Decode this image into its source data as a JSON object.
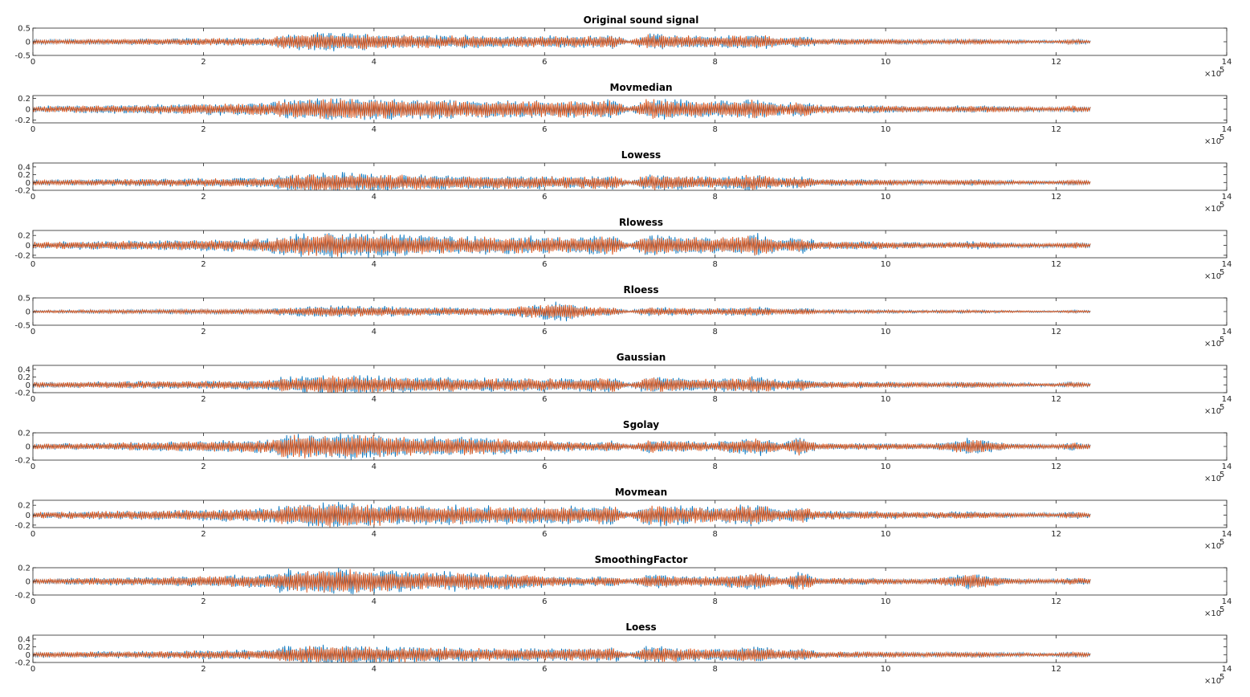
{
  "colors": {
    "original": "#0072BD",
    "smoothed": "#D95319",
    "axis": "#262626",
    "background": "#ffffff"
  },
  "chart_data": [
    {
      "type": "line",
      "title": "Original sound signal",
      "xlim": [
        0,
        1400000
      ],
      "ylim": [
        -0.5,
        0.5
      ],
      "xticks": [
        "0",
        "2",
        "4",
        "6",
        "8",
        "10",
        "12",
        "14"
      ],
      "x_exponent": "×10",
      "x_exponent_power": "5",
      "yticks": [
        {
          "value": 0.5,
          "label": "0.5"
        },
        {
          "value": 0,
          "label": "0"
        },
        {
          "value": -0.5,
          "label": "-0.5"
        }
      ],
      "signal_end_x": 1240000,
      "envelope_x": [
        0,
        150000,
        280000,
        290000,
        350000,
        400000,
        450000,
        550000,
        650000,
        680000,
        700000,
        720000,
        800000,
        850000,
        880000,
        900000,
        920000,
        1000000,
        1050000,
        1100000,
        1150000,
        1200000,
        1220000,
        1240000
      ],
      "envelope_amp": [
        0.08,
        0.12,
        0.16,
        0.26,
        0.34,
        0.3,
        0.26,
        0.22,
        0.22,
        0.26,
        0.05,
        0.3,
        0.2,
        0.3,
        0.15,
        0.22,
        0.12,
        0.1,
        0.08,
        0.1,
        0.07,
        0.05,
        0.1,
        0.06
      ],
      "series": [
        {
          "values_note_free": true,
          "color_key": "smoothed"
        }
      ]
    },
    {
      "type": "line",
      "title": "Movmedian",
      "xlim": [
        0,
        1400000
      ],
      "ylim": [
        -0.25,
        0.25
      ],
      "xticks": [
        "0",
        "2",
        "4",
        "6",
        "8",
        "10",
        "12",
        "14"
      ],
      "x_exponent": "×10",
      "x_exponent_power": "5",
      "yticks": [
        {
          "value": 0.2,
          "label": "0.2"
        },
        {
          "value": 0,
          "label": "0"
        },
        {
          "value": -0.2,
          "label": "-0.2"
        }
      ],
      "signal_end_x": 1240000,
      "envelope_x": [
        0,
        150000,
        280000,
        290000,
        350000,
        400000,
        450000,
        550000,
        650000,
        680000,
        700000,
        720000,
        800000,
        850000,
        880000,
        900000,
        920000,
        1000000,
        1050000,
        1100000,
        1150000,
        1200000,
        1220000,
        1240000
      ],
      "envelope_amp": [
        0.06,
        0.09,
        0.12,
        0.18,
        0.22,
        0.2,
        0.18,
        0.16,
        0.16,
        0.18,
        0.04,
        0.2,
        0.14,
        0.2,
        0.1,
        0.16,
        0.08,
        0.07,
        0.06,
        0.07,
        0.05,
        0.04,
        0.07,
        0.05
      ]
    },
    {
      "type": "line",
      "title": "Lowess",
      "xlim": [
        0,
        1400000
      ],
      "ylim": [
        -0.2,
        0.5
      ],
      "xticks": [
        "0",
        "2",
        "4",
        "6",
        "8",
        "10",
        "12",
        "14"
      ],
      "x_exponent": "×10",
      "x_exponent_power": "5",
      "yticks": [
        {
          "value": 0.4,
          "label": "0.4"
        },
        {
          "value": 0.2,
          "label": "0.2"
        },
        {
          "value": 0,
          "label": "0"
        },
        {
          "value": -0.2,
          "label": "-0.2"
        }
      ],
      "signal_end_x": 1240000,
      "envelope_x": [
        0,
        150000,
        280000,
        290000,
        350000,
        400000,
        450000,
        550000,
        650000,
        680000,
        700000,
        720000,
        800000,
        850000,
        880000,
        900000,
        920000,
        1000000,
        1050000,
        1100000,
        1150000,
        1200000,
        1220000,
        1240000
      ],
      "envelope_amp": [
        0.07,
        0.1,
        0.13,
        0.2,
        0.26,
        0.22,
        0.2,
        0.17,
        0.17,
        0.2,
        0.04,
        0.22,
        0.15,
        0.22,
        0.11,
        0.17,
        0.09,
        0.08,
        0.06,
        0.08,
        0.05,
        0.04,
        0.08,
        0.05
      ]
    },
    {
      "type": "line",
      "title": "Rlowess",
      "xlim": [
        0,
        1400000
      ],
      "ylim": [
        -0.25,
        0.3
      ],
      "xticks": [
        "0",
        "2",
        "4",
        "6",
        "8",
        "10",
        "12",
        "14"
      ],
      "x_exponent": "×10",
      "x_exponent_power": "5",
      "yticks": [
        {
          "value": 0.2,
          "label": "0.2"
        },
        {
          "value": 0,
          "label": "0"
        },
        {
          "value": -0.2,
          "label": "-0.2"
        }
      ],
      "signal_end_x": 1240000,
      "envelope_x": [
        0,
        150000,
        280000,
        290000,
        350000,
        400000,
        450000,
        550000,
        650000,
        680000,
        700000,
        720000,
        800000,
        850000,
        880000,
        900000,
        920000,
        1000000,
        1050000,
        1100000,
        1150000,
        1200000,
        1220000,
        1240000
      ],
      "envelope_amp": [
        0.07,
        0.1,
        0.14,
        0.2,
        0.26,
        0.23,
        0.2,
        0.18,
        0.18,
        0.2,
        0.04,
        0.23,
        0.16,
        0.23,
        0.11,
        0.18,
        0.09,
        0.08,
        0.06,
        0.08,
        0.05,
        0.04,
        0.08,
        0.05
      ]
    },
    {
      "type": "line",
      "title": "Rloess",
      "xlim": [
        0,
        1400000
      ],
      "ylim": [
        -0.5,
        0.5
      ],
      "xticks": [
        "0",
        "2",
        "4",
        "6",
        "8",
        "10",
        "12",
        "14"
      ],
      "x_exponent": "×10",
      "x_exponent_power": "5",
      "yticks": [
        {
          "value": 0.5,
          "label": "0.5"
        },
        {
          "value": 0,
          "label": "0"
        },
        {
          "value": -0.5,
          "label": "-0.5"
        }
      ],
      "signal_end_x": 1240000,
      "envelope_x": [
        0,
        150000,
        280000,
        290000,
        350000,
        400000,
        450000,
        550000,
        620000,
        650000,
        680000,
        700000,
        720000,
        800000,
        850000,
        880000,
        900000,
        920000,
        1000000,
        1050000,
        1100000,
        1150000,
        1200000,
        1220000,
        1240000
      ],
      "envelope_amp": [
        0.05,
        0.08,
        0.1,
        0.14,
        0.22,
        0.2,
        0.16,
        0.14,
        0.35,
        0.2,
        0.16,
        0.03,
        0.18,
        0.12,
        0.18,
        0.09,
        0.14,
        0.07,
        0.06,
        0.05,
        0.06,
        0.04,
        0.03,
        0.06,
        0.04
      ]
    },
    {
      "type": "line",
      "title": "Gaussian",
      "xlim": [
        0,
        1400000
      ],
      "ylim": [
        -0.2,
        0.5
      ],
      "xticks": [
        "0",
        "2",
        "4",
        "6",
        "8",
        "10",
        "12",
        "14"
      ],
      "x_exponent": "×10",
      "x_exponent_power": "5",
      "yticks": [
        {
          "value": 0.4,
          "label": "0.4"
        },
        {
          "value": 0.2,
          "label": "0.2"
        },
        {
          "value": 0,
          "label": "0"
        },
        {
          "value": -0.2,
          "label": "-0.2"
        }
      ],
      "signal_end_x": 1240000,
      "envelope_x": [
        0,
        150000,
        280000,
        290000,
        350000,
        400000,
        450000,
        550000,
        650000,
        680000,
        700000,
        720000,
        800000,
        850000,
        880000,
        900000,
        920000,
        1000000,
        1050000,
        1100000,
        1150000,
        1200000,
        1220000,
        1240000
      ],
      "envelope_amp": [
        0.07,
        0.1,
        0.13,
        0.2,
        0.26,
        0.22,
        0.2,
        0.17,
        0.17,
        0.2,
        0.04,
        0.22,
        0.15,
        0.22,
        0.11,
        0.17,
        0.09,
        0.08,
        0.06,
        0.08,
        0.05,
        0.04,
        0.08,
        0.05
      ]
    },
    {
      "type": "line",
      "title": "Sgolay",
      "xlim": [
        0,
        1400000
      ],
      "ylim": [
        -0.2,
        0.2
      ],
      "xticks": [
        "0",
        "2",
        "4",
        "6",
        "8",
        "10",
        "12",
        "14"
      ],
      "x_exponent": "×10",
      "x_exponent_power": "5",
      "yticks": [
        {
          "value": 0.2,
          "label": "0.2"
        },
        {
          "value": 0,
          "label": "0"
        },
        {
          "value": -0.2,
          "label": "-0.2"
        }
      ],
      "signal_end_x": 1240000,
      "envelope_x": [
        0,
        150000,
        280000,
        290000,
        350000,
        400000,
        450000,
        550000,
        650000,
        680000,
        700000,
        720000,
        800000,
        850000,
        880000,
        900000,
        920000,
        1000000,
        1050000,
        1100000,
        1150000,
        1200000,
        1220000,
        1240000
      ],
      "envelope_amp": [
        0.04,
        0.07,
        0.1,
        0.17,
        0.19,
        0.18,
        0.15,
        0.12,
        0.06,
        0.08,
        0.03,
        0.1,
        0.07,
        0.14,
        0.05,
        0.15,
        0.05,
        0.05,
        0.04,
        0.12,
        0.04,
        0.03,
        0.06,
        0.04
      ]
    },
    {
      "type": "line",
      "title": "Movmean",
      "xlim": [
        0,
        1400000
      ],
      "ylim": [
        -0.25,
        0.3
      ],
      "xticks": [
        "0",
        "2",
        "4",
        "6",
        "8",
        "10",
        "12",
        "14"
      ],
      "x_exponent": "×10",
      "x_exponent_power": "5",
      "yticks": [
        {
          "value": 0.2,
          "label": "0.2"
        },
        {
          "value": 0,
          "label": "0"
        },
        {
          "value": -0.2,
          "label": "-0.2"
        }
      ],
      "signal_end_x": 1240000,
      "envelope_x": [
        0,
        150000,
        280000,
        290000,
        350000,
        400000,
        450000,
        550000,
        650000,
        680000,
        700000,
        720000,
        800000,
        850000,
        880000,
        900000,
        920000,
        1000000,
        1050000,
        1100000,
        1150000,
        1200000,
        1220000,
        1240000
      ],
      "envelope_amp": [
        0.07,
        0.1,
        0.14,
        0.2,
        0.26,
        0.23,
        0.2,
        0.18,
        0.18,
        0.2,
        0.04,
        0.23,
        0.16,
        0.23,
        0.11,
        0.18,
        0.09,
        0.08,
        0.06,
        0.08,
        0.05,
        0.04,
        0.08,
        0.05
      ]
    },
    {
      "type": "line",
      "title": "SmoothingFactor",
      "xlim": [
        0,
        1400000
      ],
      "ylim": [
        -0.2,
        0.2
      ],
      "xticks": [
        "0",
        "2",
        "4",
        "6",
        "8",
        "10",
        "12",
        "14"
      ],
      "x_exponent": "×10",
      "x_exponent_power": "5",
      "yticks": [
        {
          "value": 0.2,
          "label": "0.2"
        },
        {
          "value": 0,
          "label": "0"
        },
        {
          "value": -0.2,
          "label": "-0.2"
        }
      ],
      "signal_end_x": 1240000,
      "envelope_x": [
        0,
        150000,
        280000,
        290000,
        350000,
        400000,
        450000,
        550000,
        650000,
        680000,
        700000,
        720000,
        800000,
        850000,
        880000,
        900000,
        920000,
        1000000,
        1050000,
        1100000,
        1150000,
        1200000,
        1220000,
        1240000
      ],
      "envelope_amp": [
        0.04,
        0.07,
        0.1,
        0.17,
        0.19,
        0.18,
        0.15,
        0.12,
        0.06,
        0.08,
        0.03,
        0.1,
        0.07,
        0.14,
        0.05,
        0.15,
        0.05,
        0.05,
        0.04,
        0.12,
        0.04,
        0.03,
        0.06,
        0.04
      ]
    },
    {
      "type": "line",
      "title": "Loess",
      "xlim": [
        0,
        1400000
      ],
      "ylim": [
        -0.2,
        0.5
      ],
      "xticks": [
        "0",
        "2",
        "4",
        "6",
        "8",
        "10",
        "12",
        "14"
      ],
      "x_exponent": "×10",
      "x_exponent_power": "5",
      "yticks": [
        {
          "value": 0.4,
          "label": "0.4"
        },
        {
          "value": 0.2,
          "label": "0.2"
        },
        {
          "value": 0,
          "label": "0"
        },
        {
          "value": -0.2,
          "label": "-0.2"
        }
      ],
      "signal_end_x": 1240000,
      "envelope_x": [
        0,
        150000,
        280000,
        290000,
        350000,
        400000,
        450000,
        550000,
        650000,
        680000,
        700000,
        720000,
        800000,
        850000,
        880000,
        900000,
        920000,
        1000000,
        1050000,
        1100000,
        1150000,
        1200000,
        1220000,
        1240000
      ],
      "envelope_amp": [
        0.07,
        0.1,
        0.13,
        0.2,
        0.26,
        0.22,
        0.2,
        0.17,
        0.17,
        0.2,
        0.04,
        0.22,
        0.15,
        0.22,
        0.11,
        0.17,
        0.09,
        0.08,
        0.06,
        0.08,
        0.05,
        0.04,
        0.08,
        0.05
      ]
    }
  ]
}
